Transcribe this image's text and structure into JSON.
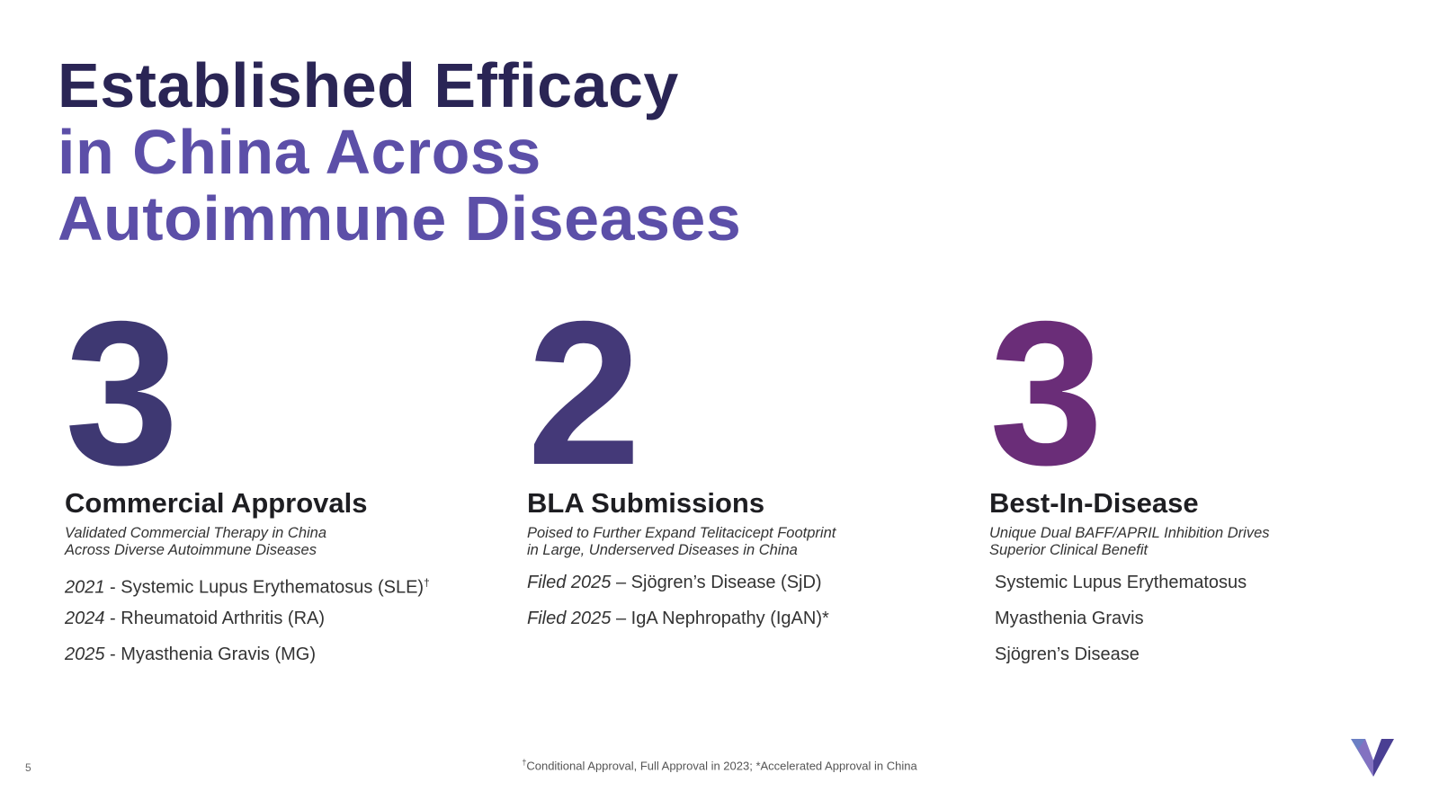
{
  "title": {
    "line1": "Established Efficacy",
    "line2": "in China Across",
    "line3": "Autoimmune Diseases"
  },
  "columns": [
    {
      "number": "3",
      "heading": "Commercial Approvals",
      "sub1": "Validated Commercial Therapy in China",
      "sub2": "Across Diverse Autoimmune Diseases",
      "items": [
        {
          "prefix": "2021",
          "sep": " - ",
          "text": "Systemic Lupus Erythematosus (SLE)",
          "mark": "†"
        },
        {
          "prefix": "2024",
          "sep": " - ",
          "text": "Rheumatoid Arthritis (RA)",
          "mark": ""
        },
        {
          "prefix": "2025",
          "sep": " - ",
          "text": "Myasthenia Gravis (MG)",
          "mark": ""
        }
      ]
    },
    {
      "number": "2",
      "heading": "BLA Submissions",
      "sub1": "Poised to Further Expand Telitacicept Footprint",
      "sub2": "in Large, Underserved Diseases in China",
      "items": [
        {
          "prefix": "Filed 2025",
          "sep": " – ",
          "text": "Sjögren’s Disease (SjD)",
          "mark": ""
        },
        {
          "prefix": "Filed 2025",
          "sep": " – ",
          "text": "IgA Nephropathy (IgAN)*",
          "mark": ""
        }
      ]
    },
    {
      "number": "3",
      "heading": "Best-In-Disease",
      "sub1": "Unique Dual BAFF/APRIL Inhibition Drives",
      "sub2": "Superior Clinical Benefit",
      "items": [
        {
          "text": "Systemic Lupus Erythematosus"
        },
        {
          "text": "Myasthenia Gravis"
        },
        {
          "text": "Sjögren’s Disease"
        }
      ]
    }
  ],
  "footnote": {
    "mark": "†",
    "text": "Conditional Approval, Full Approval in 2023; *Accelerated Approval in China"
  },
  "page_number": "5",
  "colors": {
    "title_dark": "#2a2555",
    "title_purple": "#5c4fa8",
    "number_1": "#3e3872",
    "number_2": "#443978",
    "number_3": "#6a2d78"
  },
  "logo": "v-logo-icon"
}
